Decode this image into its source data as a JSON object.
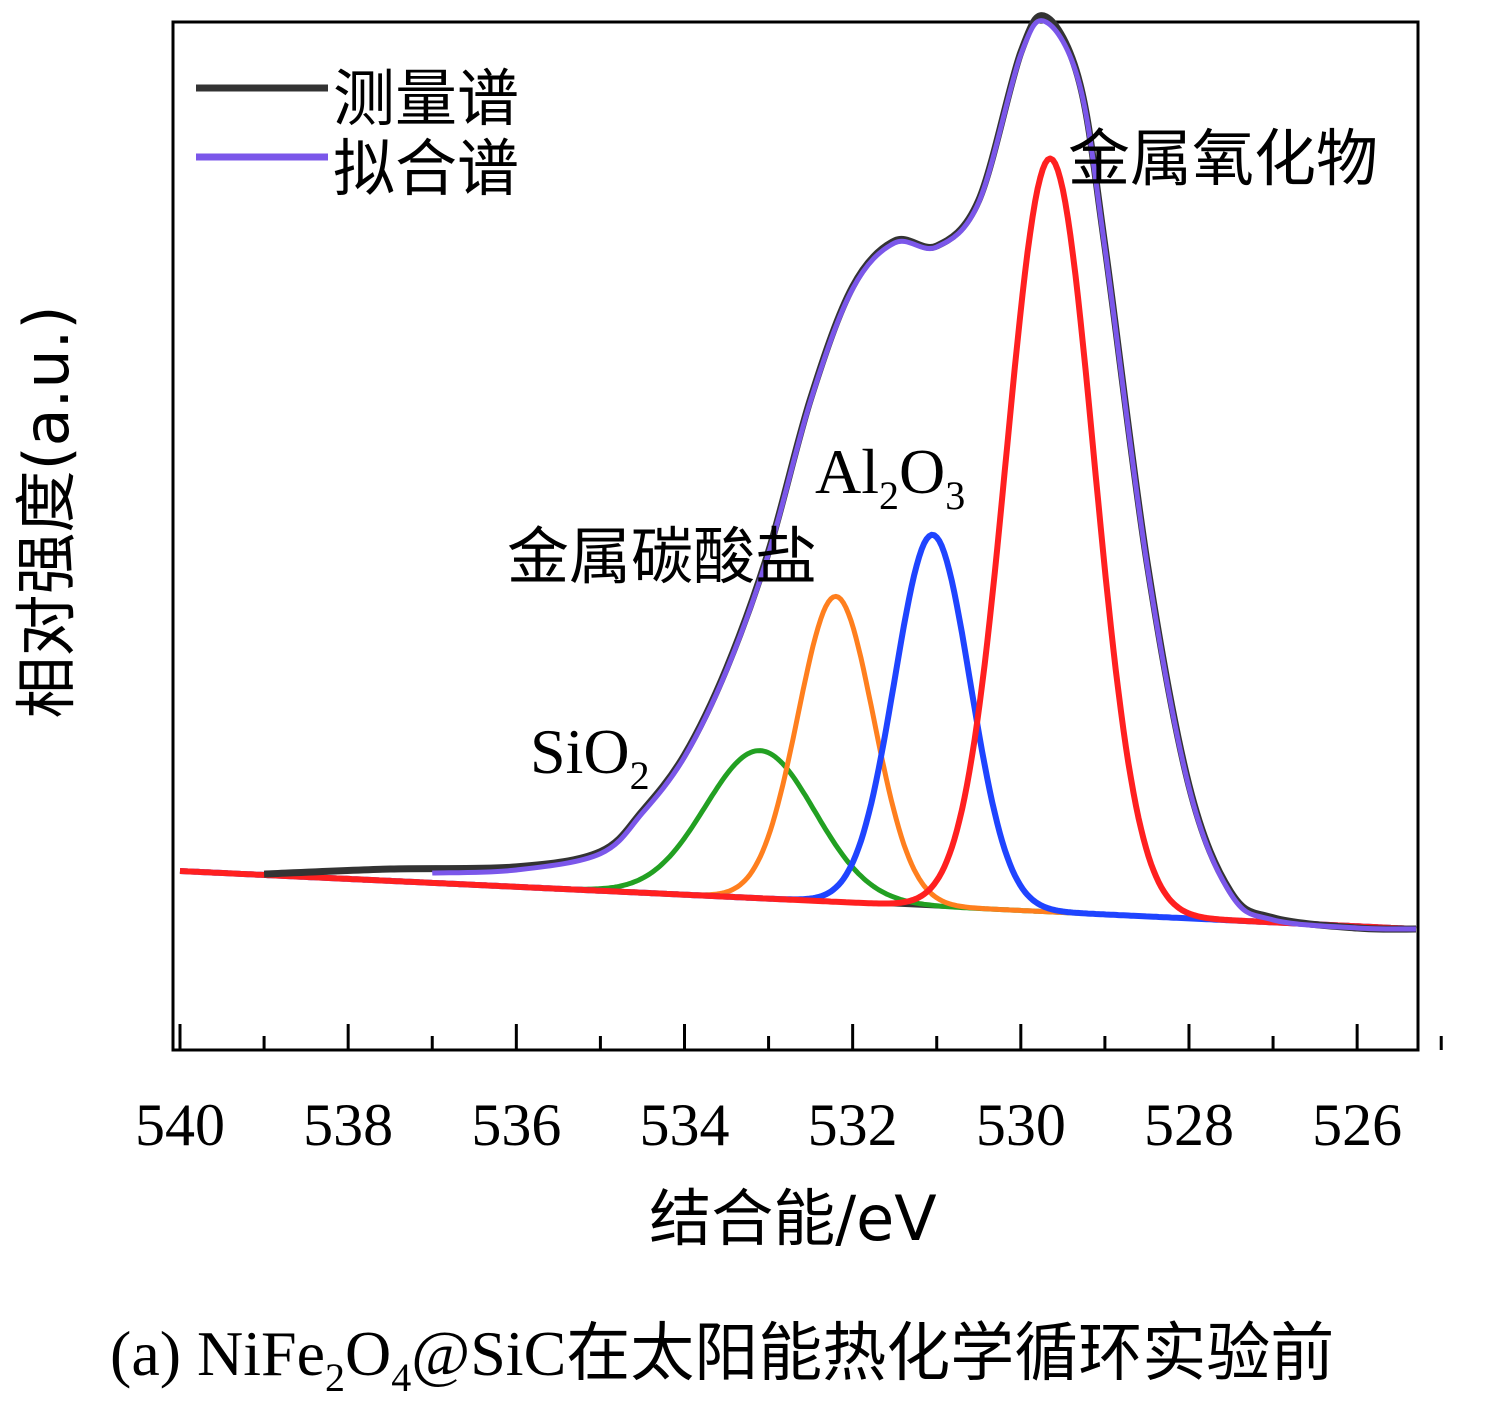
{
  "chart_data": {
    "type": "line",
    "caption": "(a) NiFe2O4@SiC在太阳能热化学循环实验前",
    "caption_parts": {
      "prefix": "(a) NiFe",
      "sub1": "2",
      "mid": "O",
      "sub2": "4",
      "suffix": "@SiC在太阳能热化学循环实验前"
    },
    "xlabel": "结合能/eV",
    "ylabel": "相对强度(a.u.)",
    "x_reversed": true,
    "xlim": [
      540,
      525.3
    ],
    "ylim": [
      0,
      100
    ],
    "yticks_shown": false,
    "grid": false,
    "legend_position": "top-left",
    "xticks": [
      540,
      538,
      536,
      534,
      532,
      530,
      528,
      526
    ],
    "xtick_labels": [
      "540",
      "538",
      "536",
      "534",
      "532",
      "530",
      "528",
      "526"
    ],
    "legend": [
      {
        "label": "测量谱",
        "color": "#333333"
      },
      {
        "label": "拟合谱",
        "color": "#7b57ea"
      }
    ],
    "annotations": [
      {
        "text": "金属氧化物",
        "x": 527.6,
        "y": 96
      },
      {
        "text_main": "Al",
        "sub1": "2",
        "mid": "O",
        "sub2": "3",
        "x": 531.7,
        "y": 57
      },
      {
        "text": "金属碳酸盐",
        "x": 533.0,
        "y": 51
      },
      {
        "text_main": "SiO",
        "sub1": "2",
        "x": 534.2,
        "y": 30
      }
    ],
    "baseline": {
      "x_start": 540,
      "y_start": 16.6,
      "x_end": 525.3,
      "y_end": 10.9
    },
    "components": [
      {
        "name": "SiO2",
        "center": 533.1,
        "sigma": 0.65,
        "height": 14.5,
        "color": "#22a022"
      },
      {
        "name": "金属碳酸盐",
        "center": 532.2,
        "sigma": 0.45,
        "height": 30.0,
        "color": "#ff7f1e"
      },
      {
        "name": "Al2O3",
        "center": 531.05,
        "sigma": 0.45,
        "height": 36.5,
        "color": "#1f44ff"
      },
      {
        "name": "金属氧化物",
        "center": 529.65,
        "sigma": 0.52,
        "height": 74.0,
        "color": "#ff2020"
      }
    ],
    "series": [
      {
        "name": "测量谱",
        "color": "#333333",
        "x": [
          539.0,
          537.5,
          536.0,
          535.0,
          534.5,
          534.0,
          533.5,
          533.0,
          532.5,
          532.0,
          531.5,
          531.0,
          530.5,
          530.0,
          529.7,
          529.3,
          529.0,
          528.5,
          528.0,
          527.5,
          527.0,
          526.0,
          525.3
        ],
        "y": [
          16.3,
          16.8,
          17.0,
          18.5,
          22.5,
          28.0,
          36.5,
          48.0,
          63.0,
          74.0,
          78.5,
          78.0,
          82.5,
          97.0,
          100.5,
          94.0,
          78.0,
          47.0,
          25.0,
          14.5,
          12.0,
          11.0,
          10.9
        ]
      },
      {
        "name": "拟合谱",
        "color": "#7b57ea",
        "x": [
          537.0,
          536.0,
          535.0,
          534.5,
          534.0,
          533.5,
          533.0,
          532.5,
          532.0,
          531.5,
          531.0,
          530.5,
          530.0,
          529.7,
          529.3,
          529.0,
          528.5,
          528.0,
          527.5,
          527.0,
          526.0,
          525.3
        ],
        "y": [
          16.4,
          16.7,
          18.3,
          22.3,
          27.8,
          36.3,
          47.8,
          62.8,
          73.8,
          78.3,
          77.9,
          82.3,
          96.8,
          100.0,
          93.8,
          77.8,
          46.8,
          24.8,
          14.3,
          11.8,
          11.0,
          10.9
        ]
      }
    ]
  }
}
